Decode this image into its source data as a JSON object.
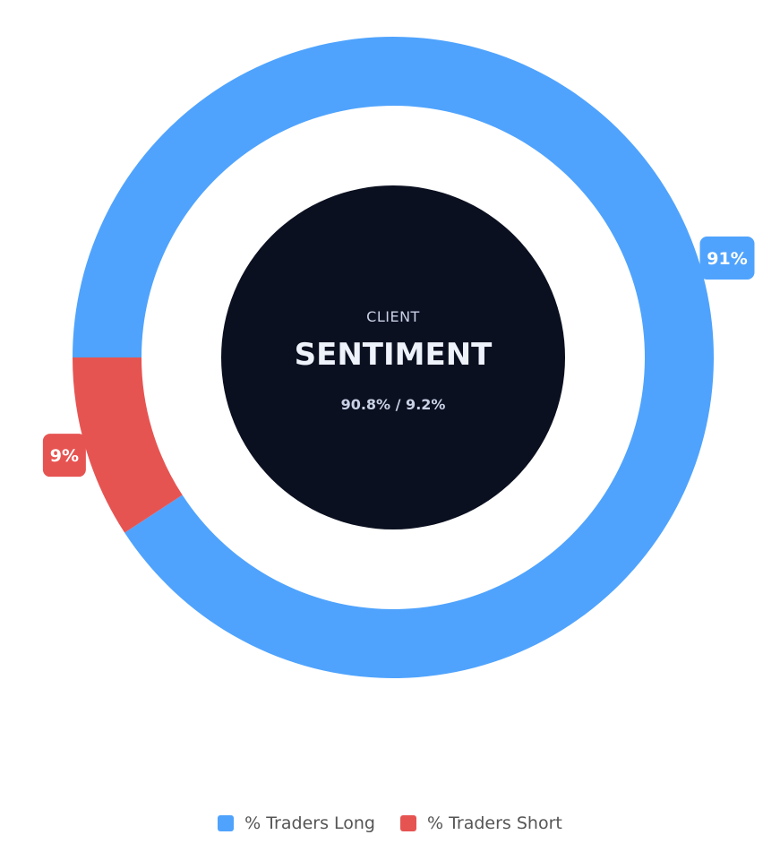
{
  "chart_data": {
    "type": "pie",
    "donut": true,
    "categories": [
      "% Traders Long",
      "% Traders Short"
    ],
    "values": [
      90.8,
      9.2
    ],
    "data_labels": [
      "91%",
      "9%"
    ],
    "colors": [
      "#4fa3fd",
      "#e65452"
    ],
    "legend": "bottom-center",
    "center": {
      "line1": "CLIENT",
      "line2": "SENTIMENT",
      "line3": "90.8% / 9.2%",
      "background": "#0b1020"
    }
  }
}
